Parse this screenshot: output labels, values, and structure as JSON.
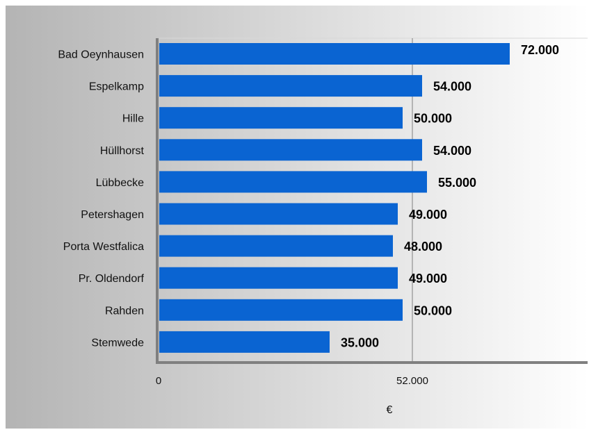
{
  "chart_data": {
    "type": "bar",
    "orientation": "horizontal",
    "categories": [
      "Bad Oeynhausen",
      "Espelkamp",
      "Hille",
      "Hüllhorst",
      "Lübbecke",
      "Petershagen",
      "Porta Westfalica",
      "Pr. Oldendorf",
      "Rahden",
      "Stemwede"
    ],
    "values": [
      72000,
      54000,
      50000,
      54000,
      55000,
      49000,
      48000,
      49000,
      50000,
      35000
    ],
    "value_labels": [
      "72.000",
      "54.000",
      "50.000",
      "54.000",
      "55.000",
      "49.000",
      "48.000",
      "49.000",
      "50.000",
      "35.000"
    ],
    "title": "",
    "xlabel": "€",
    "ylabel": "",
    "xlim": [
      0,
      88000
    ],
    "x_ticks": [
      0,
      52000
    ],
    "x_tick_labels": [
      "0",
      "52.000"
    ],
    "grid": "vertical line at 52.000",
    "legend": "none",
    "bar_color": "#0a64d2",
    "background_gradient": [
      "#b4b4b4",
      "#ffffff"
    ],
    "axis_color": "#808080"
  }
}
